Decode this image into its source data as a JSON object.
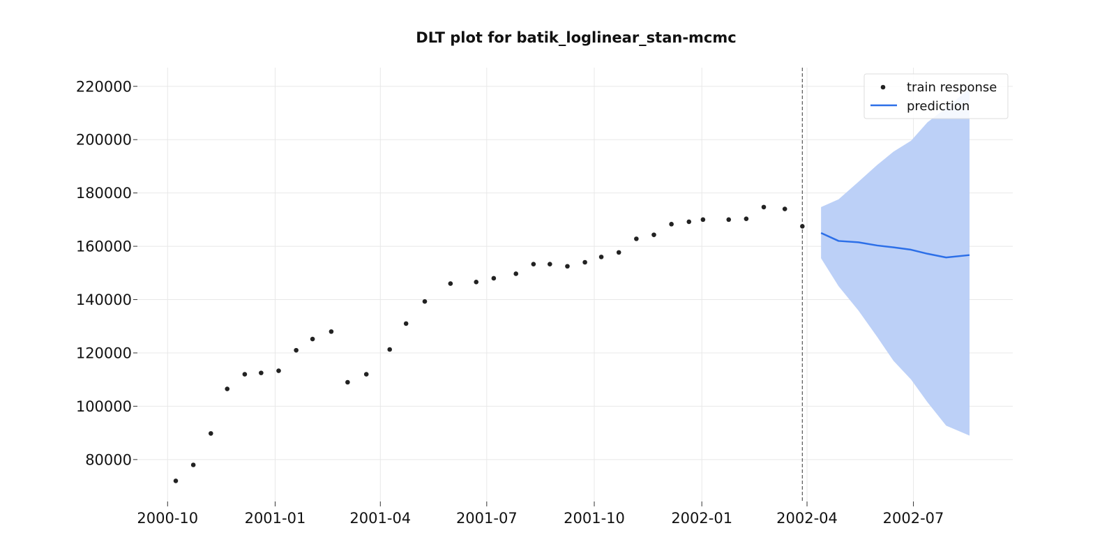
{
  "chart_data": {
    "type": "line",
    "title": "DLT plot for batik_loglinear_stan-mcmc",
    "xlabel": "",
    "ylabel": "",
    "grid": true,
    "legend_position": "top-right",
    "x_tick_labels": [
      "2000-10",
      "2001-01",
      "2001-04",
      "2001-07",
      "2001-10",
      "2002-01",
      "2002-04",
      "2002-07"
    ],
    "y_tick_labels": [
      "80000",
      "100000",
      "120000",
      "140000",
      "160000",
      "180000",
      "200000",
      "220000"
    ],
    "xlim": [
      "2000-09-01",
      "2002-09-24"
    ],
    "ylim": [
      64000,
      227000
    ],
    "train_end_date": "2002-03-28",
    "colors": {
      "train_response": "#222222",
      "prediction": "#2c6fe8",
      "prediction_band": "#bcd0f7",
      "cutoff_line": "#555555",
      "grid": "#e8e8e8"
    },
    "series": [
      {
        "name": "train response",
        "kind": "scatter",
        "x": [
          "2000-10-08",
          "2000-10-23",
          "2000-11-07",
          "2000-11-21",
          "2000-12-06",
          "2000-12-20",
          "2001-01-04",
          "2001-01-19",
          "2001-02-02",
          "2001-02-18",
          "2001-03-04",
          "2001-03-20",
          "2001-04-09",
          "2001-04-23",
          "2001-05-09",
          "2001-05-31",
          "2001-06-22",
          "2001-07-07",
          "2001-07-26",
          "2001-08-10",
          "2001-08-24",
          "2001-09-08",
          "2001-09-23",
          "2001-10-07",
          "2001-10-22",
          "2001-11-06",
          "2001-11-21",
          "2001-12-06",
          "2001-12-21",
          "2002-01-02",
          "2002-01-24",
          "2002-02-08",
          "2002-02-23",
          "2002-03-13",
          "2002-03-28"
        ],
        "values": [
          72000,
          78000,
          89800,
          106500,
          112000,
          112500,
          113300,
          121000,
          125200,
          128000,
          109000,
          112000,
          121300,
          131000,
          139300,
          146000,
          146600,
          148000,
          149700,
          153300,
          153300,
          152500,
          154000,
          156000,
          157700,
          162800,
          164300,
          168300,
          169200,
          170000,
          170000,
          170300,
          174700,
          174000,
          167500
        ]
      },
      {
        "name": "prediction",
        "kind": "line",
        "x": [
          "2002-04-13",
          "2002-04-28",
          "2002-05-15",
          "2002-05-31",
          "2002-06-14",
          "2002-06-29",
          "2002-07-13",
          "2002-07-29",
          "2002-08-18"
        ],
        "values": [
          165000,
          162000,
          161500,
          160300,
          159600,
          158700,
          157200,
          155800,
          156700
        ],
        "upper": [
          174700,
          177600,
          184200,
          190500,
          195500,
          199600,
          206500,
          211900,
          219200
        ],
        "lower": [
          155500,
          145000,
          135900,
          126000,
          117000,
          110000,
          101500,
          92700,
          89000
        ]
      }
    ]
  }
}
